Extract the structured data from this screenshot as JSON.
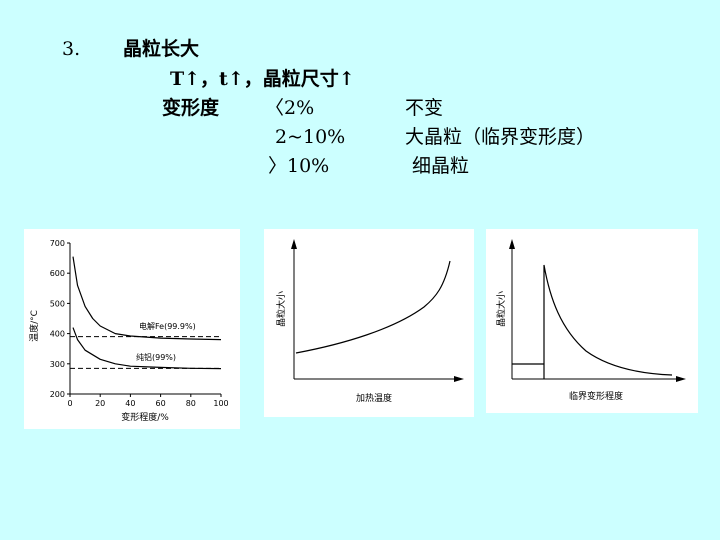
{
  "heading": {
    "number": "3.",
    "title": "晶粒长大"
  },
  "lines": {
    "line1": "T↑，t↑，晶粒尺寸↑",
    "deform_label": "变形度",
    "cond1": "〈2%",
    "cond2": "2~10%",
    "cond3": "〉10%",
    "res1": "不变",
    "res2": "大晶粒（临界变形度）",
    "res3": "细晶粒"
  },
  "chart_data": [
    {
      "type": "line",
      "xlabel": "变形程度/%",
      "ylabel": "温度/°C",
      "x_ticks": [
        "0",
        "20",
        "40",
        "60",
        "80",
        "100"
      ],
      "y_ticks": [
        "200",
        "300",
        "400",
        "500",
        "600",
        "700"
      ],
      "xlim": [
        0,
        100
      ],
      "ylim": [
        200,
        700
      ],
      "series": [
        {
          "name": "电解Fe(99.9%)",
          "x": [
            2,
            5,
            10,
            15,
            20,
            30,
            40,
            60,
            80,
            100
          ],
          "y": [
            655,
            560,
            490,
            450,
            425,
            400,
            392,
            385,
            382,
            380
          ]
        },
        {
          "name": "纯铝(99%)",
          "x": [
            2,
            5,
            10,
            20,
            30,
            40,
            60,
            80,
            100
          ],
          "y": [
            420,
            380,
            345,
            315,
            300,
            292,
            288,
            285,
            284
          ]
        }
      ],
      "reference_lines": [
        390,
        285
      ]
    },
    {
      "type": "line",
      "xlabel": "加热温度",
      "ylabel": "晶粒大小",
      "shape": "exponential-increase"
    },
    {
      "type": "line",
      "xlabel": "临界变形程度",
      "ylabel": "晶粒大小",
      "shape": "flat-then-peak-then-decay"
    }
  ]
}
